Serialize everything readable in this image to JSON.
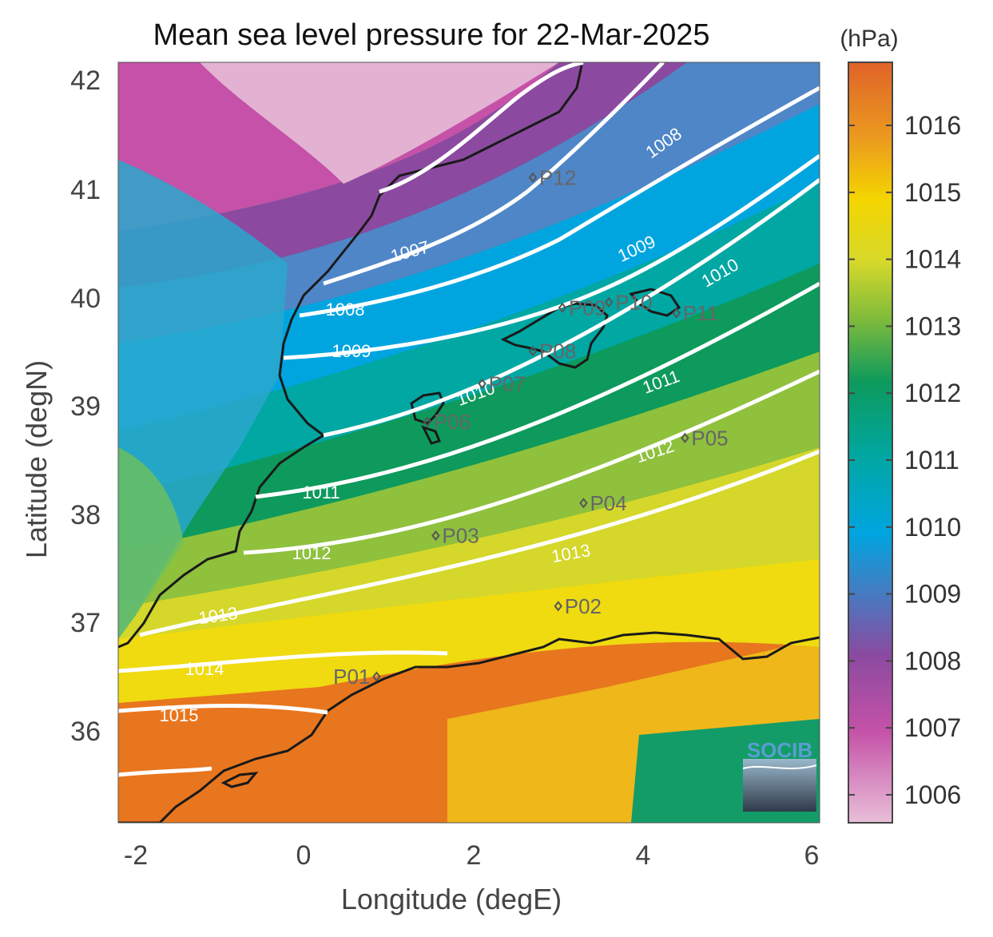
{
  "title": "Mean sea level pressure for 22-Mar-2025",
  "units": "(hPa)",
  "xlabel": "Longitude (degE)",
  "ylabel": "Latitude (degN)",
  "x_ticks": [
    "-2",
    "0",
    "2",
    "4",
    "6"
  ],
  "y_ticks": [
    "42",
    "41",
    "40",
    "39",
    "38",
    "37",
    "36"
  ],
  "colorbar_ticks": [
    "1016",
    "1015",
    "1014",
    "1013",
    "1012",
    "1011",
    "1010",
    "1009",
    "1008",
    "1007",
    "1006"
  ],
  "logo_text": "SOCIB",
  "contour_labels": [
    "1007",
    "1008",
    "1008",
    "1009",
    "1009",
    "1010",
    "1010",
    "1011",
    "1011",
    "1012",
    "1012",
    "1013",
    "1013",
    "1014",
    "1015"
  ],
  "points": [
    {
      "label": "P01",
      "lon": 0.85,
      "lat": 36.5
    },
    {
      "label": "P02",
      "lon": 3.0,
      "lat": 37.15
    },
    {
      "label": "P03",
      "lon": 1.55,
      "lat": 37.8
    },
    {
      "label": "P04",
      "lon": 3.3,
      "lat": 38.1
    },
    {
      "label": "P05",
      "lon": 4.5,
      "lat": 38.7
    },
    {
      "label": "P06",
      "lon": 1.45,
      "lat": 38.85
    },
    {
      "label": "P07",
      "lon": 2.1,
      "lat": 39.2
    },
    {
      "label": "P08",
      "lon": 2.7,
      "lat": 39.5
    },
    {
      "label": "P09",
      "lon": 3.05,
      "lat": 39.9
    },
    {
      "label": "P10",
      "lon": 3.6,
      "lat": 39.95
    },
    {
      "label": "P11",
      "lon": 4.4,
      "lat": 39.85
    },
    {
      "label": "P12",
      "lon": 2.7,
      "lat": 41.1
    }
  ],
  "colors": {
    "high": "#e06328",
    "mid": "#0d9a5c",
    "low": "#00a5e0",
    "min": "#e8bfd8",
    "contour": "#ffffff",
    "coast": "#1a1a1a"
  }
}
